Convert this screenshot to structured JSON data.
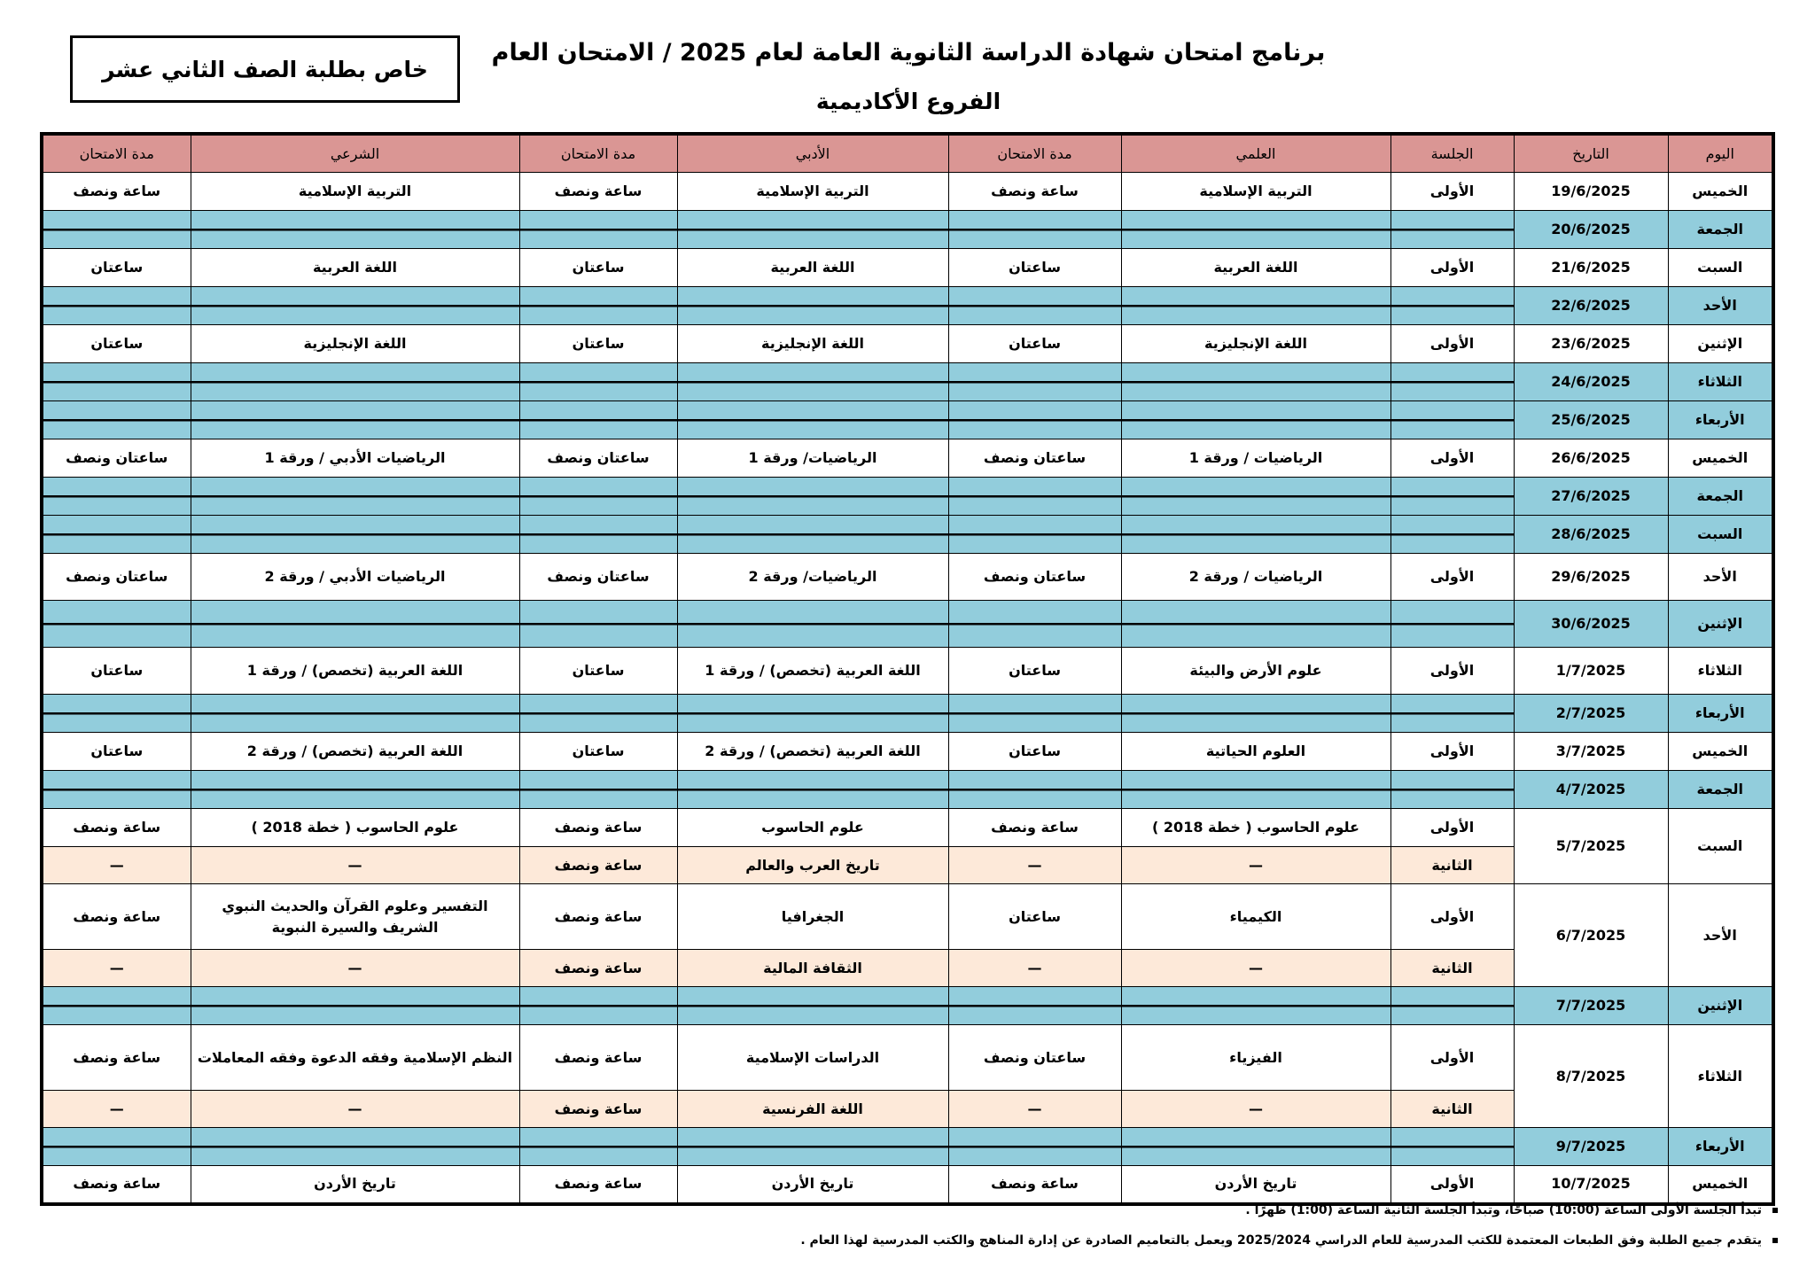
{
  "header": {
    "title": "برنامج امتحان شهادة الدراسة الثانوية العامة لعام 2025 / الامتحان العام",
    "subtitle": "الفروع الأكاديمية",
    "badge": "خاص بطلبة الصف الثاني عشر"
  },
  "table": {
    "columns": [
      "اليوم",
      "التاريخ",
      "الجلسة",
      "العلمي",
      "مدة الامتحان",
      "الأدبي",
      "مدة الامتحان",
      "الشرعي",
      "مدة الامتحان"
    ],
    "rows": [
      {
        "day": "الخميس",
        "date": "19/6/2025",
        "sessions": [
          [
            "الأولى",
            "التربية الإسلامية",
            "ساعة ونصف",
            "التربية الإسلامية",
            "ساعة ونصف",
            "التربية الإسلامية",
            "ساعة ونصف"
          ]
        ]
      },
      {
        "day": "الجمعة",
        "date": "20/6/2025",
        "sessions": []
      },
      {
        "day": "السبت",
        "date": "21/6/2025",
        "sessions": [
          [
            "الأولى",
            "اللغة العربية",
            "ساعتان",
            "اللغة العربية",
            "ساعتان",
            "اللغة العربية",
            "ساعتان"
          ]
        ]
      },
      {
        "day": "الأحد",
        "date": "22/6/2025",
        "sessions": []
      },
      {
        "day": "الإثنين",
        "date": "23/6/2025",
        "sessions": [
          [
            "الأولى",
            "اللغة الإنجليزية",
            "ساعتان",
            "اللغة الإنجليزية",
            "ساعتان",
            "اللغة الإنجليزية",
            "ساعتان"
          ]
        ]
      },
      {
        "day": "الثلاثاء",
        "date": "24/6/2025",
        "sessions": []
      },
      {
        "day": "الأربعاء",
        "date": "25/6/2025",
        "sessions": []
      },
      {
        "day": "الخميس",
        "date": "26/6/2025",
        "sessions": [
          [
            "الأولى",
            "الرياضيات / ورقة 1",
            "ساعتان ونصف",
            "الرياضيات/ ورقة 1",
            "ساعتان ونصف",
            "الرياضيات الأدبي / ورقة 1",
            "ساعتان ونصف"
          ]
        ]
      },
      {
        "day": "الجمعة",
        "date": "27/6/2025",
        "sessions": []
      },
      {
        "day": "السبت",
        "date": "28/6/2025",
        "sessions": []
      },
      {
        "day": "الأحد",
        "date": "29/6/2025",
        "sessions": [
          [
            "الأولى",
            "الرياضيات / ورقة 2",
            "ساعتان ونصف",
            "الرياضيات/ ورقة 2",
            "ساعتان ونصف",
            "الرياضيات الأدبي / ورقة 2",
            "ساعتان ونصف"
          ]
        ]
      },
      {
        "day": "الإثنين",
        "date": "30/6/2025",
        "sessions": []
      },
      {
        "day": "الثلاثاء",
        "date": "1/7/2025",
        "sessions": [
          [
            "الأولى",
            "علوم الأرض والبيئة",
            "ساعتان",
            "اللغة العربية (تخصص) / ورقة 1",
            "ساعتان",
            "اللغة العربية (تخصص) / ورقة 1",
            "ساعتان"
          ]
        ]
      },
      {
        "day": "الأربعاء",
        "date": "2/7/2025",
        "sessions": []
      },
      {
        "day": "الخميس",
        "date": "3/7/2025",
        "sessions": [
          [
            "الأولى",
            "العلوم الحياتية",
            "ساعتان",
            "اللغة العربية (تخصص) / ورقة 2",
            "ساعتان",
            "اللغة العربية (تخصص) / ورقة 2",
            "ساعتان"
          ]
        ]
      },
      {
        "day": "الجمعة",
        "date": "4/7/2025",
        "sessions": []
      },
      {
        "day": "السبت",
        "date": "5/7/2025",
        "sessions": [
          [
            "الأولى",
            "علوم الحاسوب ( خطة 2018 )",
            "ساعة ونصف",
            "علوم الحاسوب",
            "ساعة ونصف",
            "علوم الحاسوب ( خطة 2018 )",
            "ساعة ونصف"
          ],
          [
            "الثانية",
            "—",
            "—",
            "تاريخ العرب والعالم",
            "ساعة ونصف",
            "—",
            "—"
          ]
        ]
      },
      {
        "day": "الأحد",
        "date": "6/7/2025",
        "sessions": [
          [
            "الأولى",
            "الكيمياء",
            "ساعتان",
            "الجغرافيا",
            "ساعة ونصف",
            "التفسير وعلوم القرآن والحديث النبوي الشريف والسيرة النبوية",
            "ساعة ونصف"
          ],
          [
            "الثانية",
            "—",
            "—",
            "الثقافة المالية",
            "ساعة ونصف",
            "—",
            "—"
          ]
        ]
      },
      {
        "day": "الإثنين",
        "date": "7/7/2025",
        "sessions": []
      },
      {
        "day": "الثلاثاء",
        "date": "8/7/2025",
        "sessions": [
          [
            "الأولى",
            "الفيزياء",
            "ساعتان ونصف",
            "الدراسات الإسلامية",
            "ساعة ونصف",
            "النظم الإسلامية وفقه الدعوة وفقه المعاملات",
            "ساعة ونصف"
          ],
          [
            "الثانية",
            "—",
            "—",
            "اللغة الفرنسية",
            "ساعة ونصف",
            "—",
            "—"
          ]
        ]
      },
      {
        "day": "الأربعاء",
        "date": "9/7/2025",
        "sessions": []
      },
      {
        "day": "الخميس",
        "date": "10/7/2025",
        "sessions": [
          [
            "الأولى",
            "تاريخ الأردن",
            "ساعة ونصف",
            "تاريخ الأردن",
            "ساعة ونصف",
            "تاريخ الأردن",
            "ساعة ونصف"
          ]
        ]
      }
    ]
  },
  "notes": [
    "تبدأ الجلسة الأولى الساعة (10:00) صباحًا، وتبدأ الجلسة الثانية الساعة (1:00) ظهرًا .",
    "يتقدم جميع الطلبة وفق الطبعات المعتمدة للكتب المدرسية للعام الدراسي 2025/2024 ويعمل بالتعاميم الصادرة عن إدارة المناهج والكتب المدرسية لهذا العام ."
  ]
}
